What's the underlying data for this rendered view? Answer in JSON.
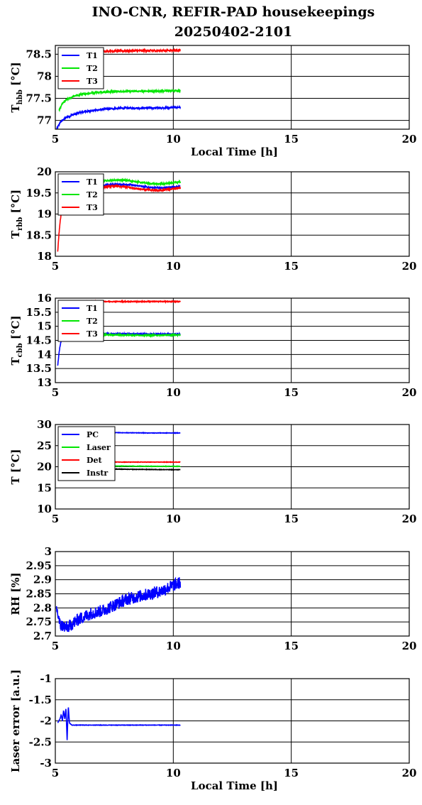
{
  "figure": {
    "title_line1": "INO-CNR, REFIR-PAD housekeepings",
    "title_line2": "20250402-2101"
  },
  "chart_data": [
    {
      "type": "line",
      "id": "hbb",
      "ylabel_main": "T",
      "ylabel_sub": "hbb",
      "ylabel_unit": " [°C]",
      "xlabel": "Local Time [h]",
      "xlim": [
        5,
        20
      ],
      "ylim": [
        76.8,
        78.7
      ],
      "xticks": [
        5,
        10,
        15,
        20
      ],
      "yticks": [
        77,
        77.5,
        78,
        78.5
      ],
      "ytick_labels": [
        "77",
        "77.5",
        "78",
        "78.5"
      ],
      "grid": true,
      "legend_position": "top-left",
      "series": [
        {
          "name": "T1",
          "color": "#0000ff",
          "x": [
            5.05,
            5.2,
            5.4,
            5.7,
            6.0,
            6.5,
            7.0,
            7.5,
            8.0,
            9.0,
            10.0,
            10.3
          ],
          "y": [
            76.8,
            76.95,
            77.05,
            77.12,
            77.17,
            77.22,
            77.25,
            77.27,
            77.28,
            77.28,
            77.29,
            77.3
          ],
          "noise": 0.02
        },
        {
          "name": "T2",
          "color": "#00e600",
          "x": [
            5.15,
            5.3,
            5.5,
            5.8,
            6.2,
            6.7,
            7.2,
            8.0,
            9.0,
            10.0,
            10.3
          ],
          "y": [
            77.22,
            77.38,
            77.48,
            77.55,
            77.6,
            77.63,
            77.65,
            77.66,
            77.66,
            77.67,
            77.67
          ],
          "noise": 0.018
        },
        {
          "name": "T3",
          "color": "#ff0000",
          "x": [
            6.3,
            7.0,
            8.0,
            9.0,
            10.0,
            10.3
          ],
          "y": [
            78.56,
            78.57,
            78.58,
            78.58,
            78.59,
            78.59
          ],
          "noise": 0.025
        }
      ]
    },
    {
      "type": "line",
      "id": "rbb",
      "ylabel_main": "T",
      "ylabel_sub": "rbb",
      "ylabel_unit": " [°C]",
      "xlabel": "",
      "xlim": [
        5,
        20
      ],
      "ylim": [
        18,
        20
      ],
      "xticks": [
        5,
        10,
        15,
        20
      ],
      "yticks": [
        18,
        18.5,
        19,
        19.5,
        20
      ],
      "ytick_labels": [
        "18",
        "18.5",
        "19",
        "19.5",
        "20"
      ],
      "grid": true,
      "legend_position": "top-left",
      "series": [
        {
          "name": "T1",
          "color": "#0000ff",
          "x": [
            6.3,
            7.0,
            7.5,
            8.0,
            8.5,
            9.0,
            9.5,
            10.0,
            10.3
          ],
          "y": [
            19.65,
            19.68,
            19.7,
            19.7,
            19.67,
            19.63,
            19.62,
            19.64,
            19.66
          ],
          "noise": 0.015
        },
        {
          "name": "T2",
          "color": "#00e600",
          "x": [
            6.3,
            7.0,
            7.5,
            8.0,
            8.5,
            9.0,
            9.5,
            10.0,
            10.3
          ],
          "y": [
            19.75,
            19.78,
            19.8,
            19.8,
            19.76,
            19.72,
            19.71,
            19.74,
            19.76
          ],
          "noise": 0.015
        },
        {
          "name": "T3",
          "color": "#ff0000",
          "x": [
            5.1,
            5.15,
            5.2,
            5.25,
            5.3,
            6.3,
            7.0,
            7.5,
            8.0,
            8.5,
            9.0,
            9.5,
            10.0,
            10.3
          ],
          "y": [
            18.1,
            18.5,
            18.8,
            19.0,
            19.3,
            19.6,
            19.64,
            19.66,
            19.64,
            19.6,
            19.57,
            19.56,
            19.6,
            19.62
          ],
          "noise": 0.02
        }
      ]
    },
    {
      "type": "line",
      "id": "cbb",
      "ylabel_main": "T",
      "ylabel_sub": "cbb",
      "ylabel_unit": " [°C]",
      "xlabel": "",
      "xlim": [
        5,
        20
      ],
      "ylim": [
        13,
        16
      ],
      "xticks": [
        5,
        10,
        15,
        20
      ],
      "yticks": [
        13,
        13.5,
        14,
        14.5,
        15,
        15.5,
        16
      ],
      "ytick_labels": [
        "13",
        "13.5",
        "14",
        "14.5",
        "15",
        "15.5",
        "16"
      ],
      "grid": true,
      "legend_position": "top-left",
      "series": [
        {
          "name": "T1",
          "color": "#0000ff",
          "x": [
            5.1,
            5.15,
            5.2,
            5.25,
            6.3,
            7.0,
            8.0,
            9.0,
            10.0,
            10.3
          ],
          "y": [
            13.6,
            14.0,
            14.3,
            14.5,
            14.72,
            14.73,
            14.73,
            14.72,
            14.72,
            14.72
          ],
          "noise": 0.02
        },
        {
          "name": "T2",
          "color": "#00e600",
          "x": [
            6.3,
            7.0,
            8.0,
            9.0,
            10.0,
            10.3
          ],
          "y": [
            14.7,
            14.7,
            14.69,
            14.68,
            14.69,
            14.7
          ],
          "noise": 0.02
        },
        {
          "name": "T3",
          "color": "#ff0000",
          "x": [
            5.15,
            5.3,
            6.3,
            7.0,
            8.0,
            9.0,
            10.0,
            10.3
          ],
          "y": [
            15.82,
            15.85,
            15.87,
            15.88,
            15.88,
            15.88,
            15.88,
            15.88
          ],
          "noise": 0.015
        }
      ]
    },
    {
      "type": "line",
      "id": "temps",
      "ylabel_main": "T [°C]",
      "ylabel_sub": "",
      "ylabel_unit": "",
      "xlabel": "",
      "xlim": [
        5,
        20
      ],
      "ylim": [
        10,
        30
      ],
      "xticks": [
        5,
        10,
        15,
        20
      ],
      "yticks": [
        10,
        15,
        20,
        25,
        30
      ],
      "ytick_labels": [
        "10",
        "15",
        "20",
        "25",
        "30"
      ],
      "grid": true,
      "legend_position": "top-left",
      "series": [
        {
          "name": "PC",
          "color": "#0000ff",
          "x": [
            6.3,
            7.0,
            8.0,
            9.0,
            10.0,
            10.3
          ],
          "y": [
            28.1,
            28.1,
            28.05,
            28.0,
            28.0,
            28.0
          ],
          "noise": 0.05
        },
        {
          "name": "Laser",
          "color": "#00e600",
          "x": [
            6.3,
            7.0,
            8.0,
            9.0,
            10.0,
            10.3
          ],
          "y": [
            20.3,
            20.2,
            20.15,
            20.1,
            20.1,
            20.1
          ],
          "noise": 0.05
        },
        {
          "name": "Det",
          "color": "#ff0000",
          "x": [
            6.3,
            7.0,
            8.0,
            9.0,
            10.0,
            10.3
          ],
          "y": [
            21.2,
            21.15,
            21.1,
            21.1,
            21.1,
            21.1
          ],
          "noise": 0.05
        },
        {
          "name": "Instr",
          "color": "#000000",
          "x": [
            6.3,
            7.0,
            8.0,
            9.0,
            10.0,
            10.3
          ],
          "y": [
            19.6,
            19.5,
            19.4,
            19.35,
            19.3,
            19.3
          ],
          "noise": 0.05
        }
      ]
    },
    {
      "type": "line",
      "id": "rh",
      "ylabel_main": "RH [%]",
      "ylabel_sub": "",
      "ylabel_unit": "",
      "xlabel": "",
      "xlim": [
        5,
        20
      ],
      "ylim": [
        2.7,
        3.0
      ],
      "xticks": [
        5,
        10,
        15,
        20
      ],
      "yticks": [
        2.7,
        2.75,
        2.8,
        2.85,
        2.9,
        2.95,
        3.0
      ],
      "ytick_labels": [
        "2.7",
        "2.75",
        "2.8",
        "2.85",
        "2.9",
        "2.95",
        "3"
      ],
      "grid": true,
      "legend_position": "",
      "series": [
        {
          "name": "",
          "color": "#0000ff",
          "x": [
            5.05,
            5.2,
            5.5,
            6.0,
            6.5,
            7.0,
            7.5,
            8.0,
            8.5,
            9.0,
            9.5,
            10.0,
            10.3
          ],
          "y": [
            2.8,
            2.74,
            2.73,
            2.76,
            2.78,
            2.79,
            2.81,
            2.83,
            2.84,
            2.85,
            2.86,
            2.88,
            2.89
          ],
          "noise": 0.022
        }
      ]
    },
    {
      "type": "line",
      "id": "laser",
      "ylabel_main": "Laser error [a.u.]",
      "ylabel_sub": "",
      "ylabel_unit": "",
      "xlabel": "Local Time [h]",
      "xlim": [
        5,
        20
      ],
      "ylim": [
        -3,
        -1
      ],
      "xticks": [
        5,
        10,
        15,
        20
      ],
      "yticks": [
        -3,
        -2.5,
        -2,
        -1.5,
        -1
      ],
      "ytick_labels": [
        "-3",
        "-2.5",
        "-2",
        "-1.5",
        "-1"
      ],
      "grid": true,
      "legend_position": "",
      "series": [
        {
          "name": "",
          "color": "#0000ff",
          "x": [
            5.1,
            5.2,
            5.25,
            5.3,
            5.35,
            5.4,
            5.45,
            5.5,
            5.55,
            5.6,
            5.7,
            6.0,
            7.0,
            8.0,
            9.0,
            10.0,
            10.3
          ],
          "y": [
            -2.05,
            -1.95,
            -1.85,
            -2.0,
            -1.75,
            -1.95,
            -1.7,
            -2.45,
            -1.65,
            -2.05,
            -2.1,
            -2.1,
            -2.1,
            -2.1,
            -2.1,
            -2.1,
            -2.1
          ],
          "noise": 0.005
        }
      ]
    }
  ]
}
